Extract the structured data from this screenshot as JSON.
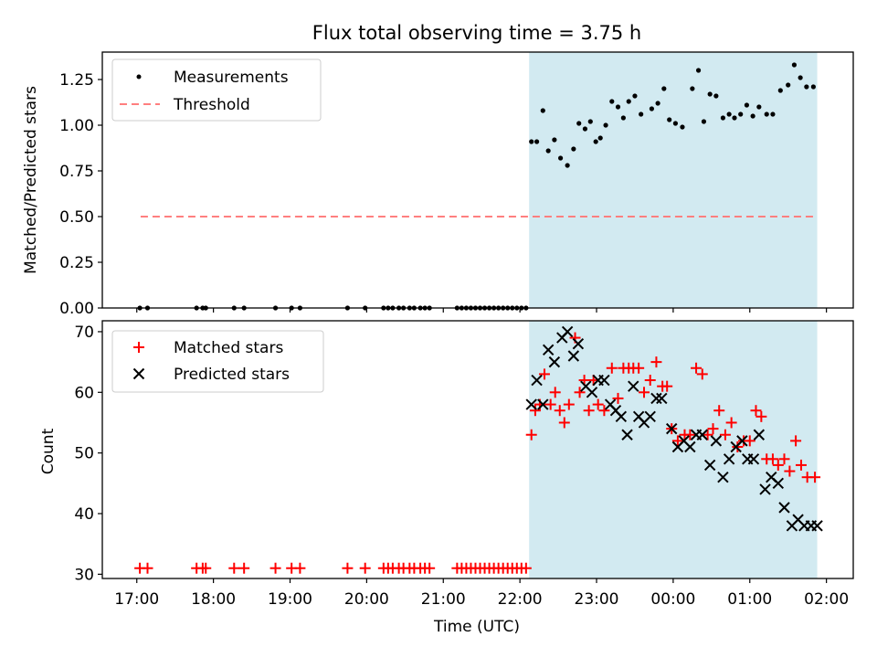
{
  "title": "Flux total observing time = 3.75 h",
  "colors": {
    "shade": "#add8e6",
    "threshold": "#ff7f7f",
    "matched": "#ff0000",
    "predicted": "#000000",
    "measure": "#000000"
  },
  "chart_data": [
    {
      "type": "scatter",
      "ylabel": "Matched/Predicted stars",
      "xlim": [
        16.55,
        26.35
      ],
      "ylim": [
        0.0,
        1.4
      ],
      "yticks": [
        "0.00",
        "0.25",
        "0.50",
        "0.75",
        "1.00",
        "1.25"
      ],
      "legend_position": "upper-left",
      "shaded_region": [
        22.12,
        25.88
      ],
      "threshold": {
        "name": "Threshold",
        "y": 0.5,
        "x": [
          17.05,
          25.85
        ]
      },
      "series": [
        {
          "name": "Measurements",
          "x": [
            17.04,
            17.14,
            17.78,
            17.86,
            17.9,
            18.27,
            18.4,
            18.81,
            19.02,
            19.13,
            19.75,
            19.98,
            20.22,
            20.28,
            20.34,
            20.42,
            20.48,
            20.56,
            20.62,
            20.7,
            20.76,
            20.82,
            21.18,
            21.24,
            21.3,
            21.36,
            21.42,
            21.48,
            21.54,
            21.6,
            21.66,
            21.72,
            21.78,
            21.84,
            21.9,
            21.96,
            22.02,
            22.08,
            22.15,
            22.22,
            22.3,
            22.37,
            22.45,
            22.53,
            22.62,
            22.7,
            22.77,
            22.85,
            22.92,
            22.99,
            23.05,
            23.12,
            23.2,
            23.28,
            23.35,
            23.42,
            23.5,
            23.58,
            23.72,
            23.8,
            23.88,
            23.95,
            24.03,
            24.12,
            24.25,
            24.33,
            24.4,
            24.48,
            24.56,
            24.65,
            24.73,
            24.8,
            24.88,
            24.96,
            25.04,
            25.12,
            25.22,
            25.3,
            25.4,
            25.5,
            25.58,
            25.66,
            25.74,
            25.83
          ],
          "y": [
            0.0,
            0.0,
            0.0,
            0.0,
            0.0,
            0.0,
            0.0,
            0.0,
            0.0,
            0.0,
            0.0,
            0.0,
            0.0,
            0.0,
            0.0,
            0.0,
            0.0,
            0.0,
            0.0,
            0.0,
            0.0,
            0.0,
            0.0,
            0.0,
            0.0,
            0.0,
            0.0,
            0.0,
            0.0,
            0.0,
            0.0,
            0.0,
            0.0,
            0.0,
            0.0,
            0.0,
            0.0,
            0.0,
            0.91,
            0.91,
            1.08,
            0.86,
            0.92,
            0.82,
            0.78,
            0.87,
            1.01,
            0.98,
            1.02,
            0.91,
            0.93,
            1.0,
            1.13,
            1.1,
            1.04,
            1.13,
            1.16,
            1.06,
            1.09,
            1.12,
            1.2,
            1.03,
            1.01,
            0.99,
            1.2,
            1.3,
            1.02,
            1.17,
            1.16,
            1.04,
            1.06,
            1.04,
            1.06,
            1.11,
            1.05,
            1.1,
            1.06,
            1.06,
            1.19,
            1.22,
            1.33,
            1.26,
            1.21,
            1.21
          ]
        }
      ]
    },
    {
      "type": "scatter",
      "xlabel": "Time (UTC)",
      "ylabel": "Count",
      "xlim": [
        16.55,
        26.35
      ],
      "ylim": [
        29.3,
        71.8
      ],
      "yticks": [
        "30",
        "40",
        "50",
        "60",
        "70"
      ],
      "xticks": [
        "17:00",
        "18:00",
        "19:00",
        "20:00",
        "21:00",
        "22:00",
        "23:00",
        "00:00",
        "01:00",
        "02:00"
      ],
      "xtick_values": [
        17,
        18,
        19,
        20,
        21,
        22,
        23,
        24,
        25,
        26
      ],
      "legend_position": "upper-left",
      "shaded_region": [
        22.12,
        25.88
      ],
      "series": [
        {
          "name": "Matched stars",
          "marker": "+",
          "x": [
            17.04,
            17.14,
            17.78,
            17.86,
            17.9,
            18.27,
            18.4,
            18.81,
            19.02,
            19.13,
            19.75,
            19.98,
            20.22,
            20.28,
            20.34,
            20.42,
            20.48,
            20.56,
            20.62,
            20.7,
            20.76,
            20.82,
            21.18,
            21.24,
            21.3,
            21.36,
            21.42,
            21.48,
            21.54,
            21.6,
            21.66,
            21.72,
            21.78,
            21.84,
            21.9,
            21.96,
            22.02,
            22.08,
            22.15,
            22.2,
            22.26,
            22.32,
            22.4,
            22.46,
            22.52,
            22.58,
            22.64,
            22.72,
            22.78,
            22.84,
            22.9,
            22.96,
            23.02,
            23.1,
            23.2,
            23.28,
            23.35,
            23.42,
            23.48,
            23.55,
            23.62,
            23.7,
            23.78,
            23.86,
            23.92,
            23.98,
            24.06,
            24.15,
            24.22,
            24.3,
            24.38,
            24.45,
            24.52,
            24.6,
            24.68,
            24.76,
            24.84,
            24.92,
            25.0,
            25.08,
            25.15,
            25.22,
            25.3,
            25.37,
            25.45,
            25.52,
            25.6,
            25.67,
            25.75,
            25.85
          ],
          "y": [
            31,
            31,
            31,
            31,
            31,
            31,
            31,
            31,
            31,
            31,
            31,
            31,
            31,
            31,
            31,
            31,
            31,
            31,
            31,
            31,
            31,
            31,
            31,
            31,
            31,
            31,
            31,
            31,
            31,
            31,
            31,
            31,
            31,
            31,
            31,
            31,
            31,
            31,
            53,
            57,
            58,
            63,
            58,
            60,
            57,
            55,
            58,
            69,
            60,
            62,
            57,
            62,
            58,
            57,
            64,
            59,
            64,
            64,
            64,
            64,
            60,
            62,
            65,
            61,
            61,
            54,
            52,
            53,
            53,
            64,
            63,
            53,
            54,
            57,
            53,
            55,
            51,
            52,
            52,
            57,
            56,
            49,
            49,
            48,
            49,
            47,
            52,
            48,
            46,
            46
          ]
        },
        {
          "name": "Predicted stars",
          "marker": "x",
          "x": [
            22.15,
            22.22,
            22.3,
            22.37,
            22.45,
            22.55,
            22.62,
            22.7,
            22.76,
            22.86,
            22.94,
            23.02,
            23.1,
            23.18,
            23.25,
            23.32,
            23.4,
            23.48,
            23.55,
            23.62,
            23.7,
            23.78,
            23.85,
            23.98,
            24.06,
            24.14,
            24.22,
            24.3,
            24.38,
            24.48,
            24.56,
            24.65,
            24.73,
            24.82,
            24.9,
            24.97,
            25.05,
            25.12,
            25.2,
            25.28,
            25.37,
            25.45,
            25.55,
            25.63,
            25.71,
            25.8,
            25.88
          ],
          "y": [
            58,
            62,
            58,
            67,
            65,
            69,
            70,
            66,
            68,
            61,
            60,
            62,
            62,
            58,
            57,
            56,
            53,
            61,
            56,
            55,
            56,
            59,
            59,
            54,
            51,
            52,
            51,
            53,
            53,
            48,
            52,
            46,
            49,
            51,
            52,
            49,
            49,
            53,
            44,
            46,
            45,
            41,
            38,
            39,
            38,
            38,
            38
          ]
        }
      ]
    }
  ]
}
